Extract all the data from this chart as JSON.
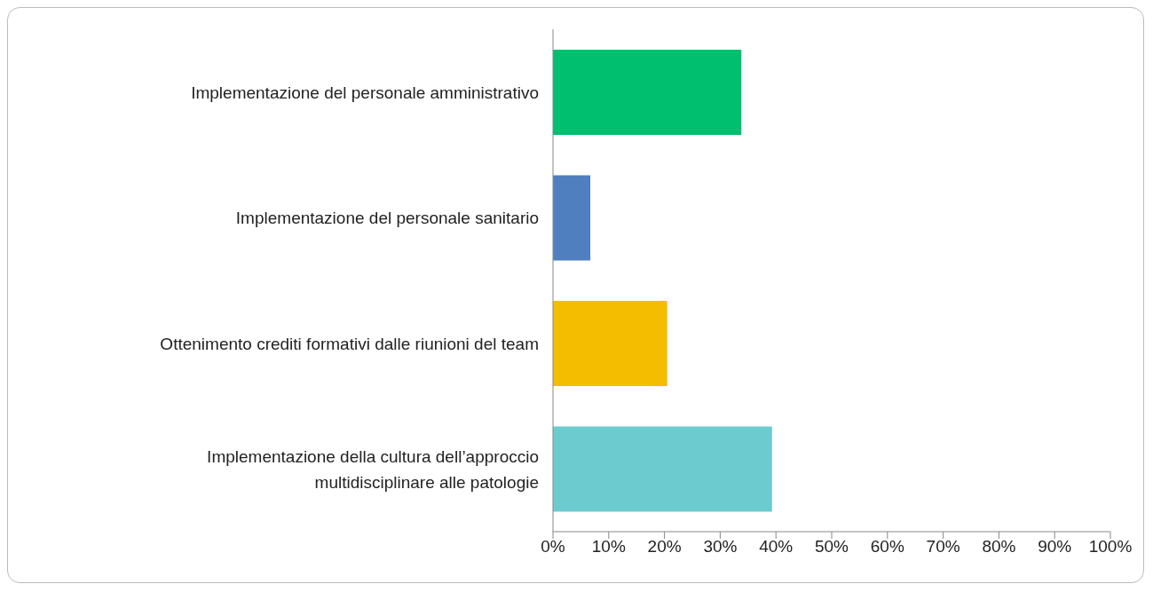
{
  "chart_data": {
    "type": "bar",
    "orientation": "horizontal",
    "categories": [
      "Implementazione del personale amministrativo",
      "Implementazione del personale sanitario",
      "Ottenimento crediti formativi dalle riunioni del team",
      "Implementazione della cultura dell’approccio multidisciplinare alle patologie"
    ],
    "values": [
      33.8,
      6.7,
      20.5,
      39.3
    ],
    "colors": [
      "#00bf6f",
      "#4f7fbf",
      "#f5bd00",
      "#6ccbcf"
    ],
    "xlim": [
      0,
      100
    ],
    "xticks": [
      {
        "value": 0,
        "label": "0%"
      },
      {
        "value": 10,
        "label": "10%"
      },
      {
        "value": 20,
        "label": "20%"
      },
      {
        "value": 30,
        "label": "30%"
      },
      {
        "value": 40,
        "label": "40%"
      },
      {
        "value": 50,
        "label": "50%"
      },
      {
        "value": 60,
        "label": "60%"
      },
      {
        "value": 70,
        "label": "70%"
      },
      {
        "value": 80,
        "label": "80%"
      },
      {
        "value": 90,
        "label": "90%"
      },
      {
        "value": 100,
        "label": "100%"
      }
    ],
    "grid": false,
    "legend": false
  }
}
